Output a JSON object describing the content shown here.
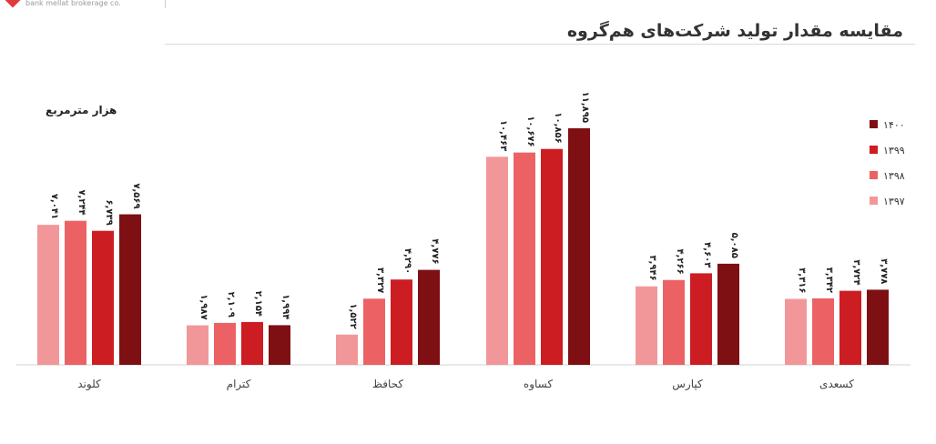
{
  "brand": {
    "logo_text": "bank mellat brokerage co."
  },
  "chart_data": {
    "type": "bar",
    "title": "مقایسه مقدار تولید شرکت‌های هم‌گروه",
    "unit_label": "هزار مترمربع",
    "xlabel": "",
    "ylabel": "",
    "ylim": [
      0,
      12.5
    ],
    "grid": false,
    "legend_position": "right",
    "categories": [
      "کلوند",
      "کترام",
      "کحافظ",
      "کساوه",
      "کپارس",
      "کسعدی"
    ],
    "series": [
      {
        "name": "۱۳۹۷",
        "color": "#f29799",
        "values": [
          7.041,
          1.987,
          1.522,
          10.463,
          3.946,
          3.316
        ],
        "labels": [
          "۷,۰۴۱",
          "۱,۹۸۷",
          "۱,۵۲۲",
          "۱۰,۴۶۳",
          "۳,۹۴۶",
          "۳,۳۱۶"
        ]
      },
      {
        "name": "۱۳۹۸",
        "color": "#ec6264",
        "values": [
          7.244,
          2.109,
          3.327,
          10.676,
          4.266,
          3.342
        ],
        "labels": [
          "۷,۲۴۴",
          "۲,۱۰۹",
          "۳,۳۲۷",
          "۱۰,۶۷۶",
          "۴,۲۶۶",
          "۳,۳۴۲"
        ]
      },
      {
        "name": "۱۳۹۹",
        "color": "#cc1d22",
        "values": [
          6.739,
          2.154,
          4.29,
          10.856,
          4.603,
          3.724
        ],
        "labels": [
          "۶,۷۳۹",
          "۲,۱۵۴",
          "۴,۲۹۰",
          "۱۰,۸۵۶",
          "۴,۶۰۳",
          "۳,۷۲۴"
        ]
      },
      {
        "name": "۱۴۰۰",
        "color": "#7e0f13",
        "values": [
          7.569,
          1.994,
          4.776,
          11.895,
          5.085,
          3.778
        ],
        "labels": [
          "۷,۵۶۹",
          "۱,۹۹۴",
          "۴,۷۷۶",
          "۱۱,۸۹۵",
          "۵,۰۸۵",
          "۳,۷۷۸"
        ]
      }
    ]
  }
}
